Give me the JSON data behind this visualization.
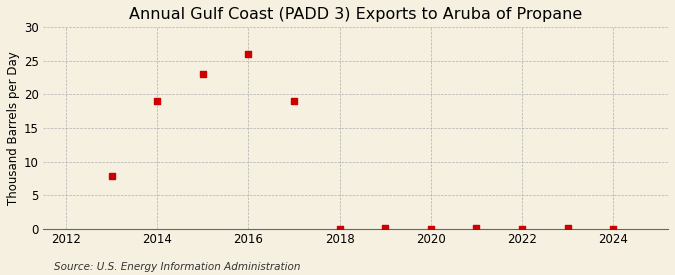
{
  "title": "Annual Gulf Coast (PADD 3) Exports to Aruba of Propane",
  "ylabel": "Thousand Barrels per Day",
  "source": "Source: U.S. Energy Information Administration",
  "background_color": "#f5f0e0",
  "x_data": [
    2013,
    2014,
    2015,
    2016,
    2017,
    2018,
    2019,
    2020,
    2021,
    2022,
    2023,
    2024
  ],
  "y_data": [
    7.8,
    19.0,
    23.0,
    26.0,
    19.0,
    0.05,
    0.07,
    0.05,
    0.07,
    0.05,
    0.07,
    0.05
  ],
  "marker_color": "#cc0000",
  "marker_size": 4,
  "xlim": [
    2011.5,
    2025.2
  ],
  "ylim": [
    0,
    30
  ],
  "yticks": [
    0,
    5,
    10,
    15,
    20,
    25,
    30
  ],
  "xticks": [
    2012,
    2014,
    2016,
    2018,
    2020,
    2022,
    2024
  ],
  "grid_color": "#aaaaaa",
  "title_fontsize": 11.5,
  "label_fontsize": 8.5,
  "tick_fontsize": 8.5,
  "source_fontsize": 7.5
}
